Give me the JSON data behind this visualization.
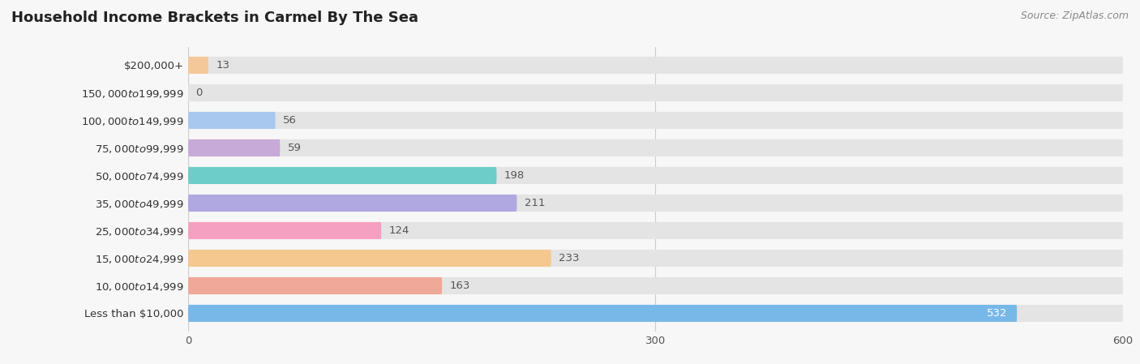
{
  "title": "Household Income Brackets in Carmel By The Sea",
  "source": "Source: ZipAtlas.com",
  "categories": [
    "Less than $10,000",
    "$10,000 to $14,999",
    "$15,000 to $24,999",
    "$25,000 to $34,999",
    "$35,000 to $49,999",
    "$50,000 to $74,999",
    "$75,000 to $99,999",
    "$100,000 to $149,999",
    "$150,000 to $199,999",
    "$200,000+"
  ],
  "values": [
    13,
    0,
    56,
    59,
    198,
    211,
    124,
    233,
    163,
    532
  ],
  "bar_colors": [
    "#f5c89a",
    "#f4a0a0",
    "#a8c8f0",
    "#c8aad8",
    "#6dcdc8",
    "#b0a8e0",
    "#f5a0c0",
    "#f5c890",
    "#f0a898",
    "#78b8e8"
  ],
  "bg_color": "#f7f7f7",
  "bar_bg_color": "#e4e4e4",
  "xlim": [
    0,
    600
  ],
  "xticks": [
    0,
    300,
    600
  ],
  "value_color_inside": "#ffffff",
  "value_color_outside": "#555555",
  "title_fontsize": 13,
  "label_fontsize": 9.5,
  "value_fontsize": 9.5,
  "source_fontsize": 9,
  "bar_height": 0.62
}
